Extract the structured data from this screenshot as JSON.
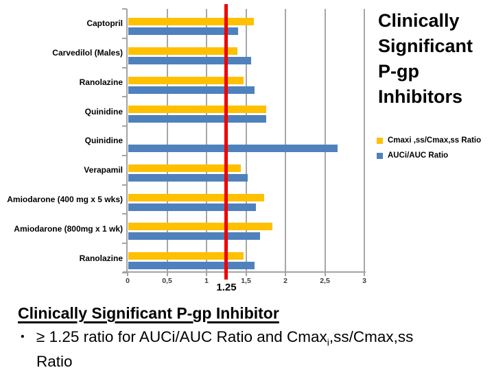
{
  "chart_data": {
    "type": "bar",
    "orientation": "horizontal",
    "title": "Clinically Significant P-gp Inhibitors",
    "categories": [
      "Captopril",
      "Carvedilol (Males)",
      "Ranolazine",
      "Quinidine",
      "Quinidine",
      "Verapamil",
      "Amiodarone (400 mg x 5 wks)",
      "Amiodarone (800mg x 1 wk)",
      "Ranolazine"
    ],
    "series": [
      {
        "name": "Cmaxi ,ss/Cmax,ss Ratio",
        "color": "#FFC000",
        "values": [
          1.59,
          1.38,
          1.46,
          1.75,
          null,
          1.43,
          1.72,
          1.83,
          1.46
        ]
      },
      {
        "name": "AUCi/AUC Ratio",
        "color": "#4F81BD",
        "values": [
          1.39,
          1.56,
          1.6,
          1.75,
          2.65,
          1.51,
          1.62,
          1.67,
          1.6
        ]
      }
    ],
    "xlim": [
      0,
      3
    ],
    "x_ticks": [
      "0",
      "0,5",
      "1",
      "1,5",
      "2",
      "2,5",
      "3"
    ],
    "x_tick_values": [
      0,
      0.5,
      1,
      1.5,
      2,
      2.5,
      3
    ],
    "reference_line": {
      "value": 1.25,
      "label": "1.25",
      "color": "#EE0000"
    },
    "grid": "vertical",
    "gridline_color": "#A6A6A6",
    "legend_position": "right"
  },
  "footer": {
    "heading": "Clinically Significant P-gp Inhibitor",
    "bullet_glyph": "•",
    "bullet_prefix": "≥ 1.25 ratio for AUCi/AUC Ratio and Cmax",
    "bullet_sub": "i",
    "bullet_suffix": ",ss/Cmax,ss Ratio"
  }
}
